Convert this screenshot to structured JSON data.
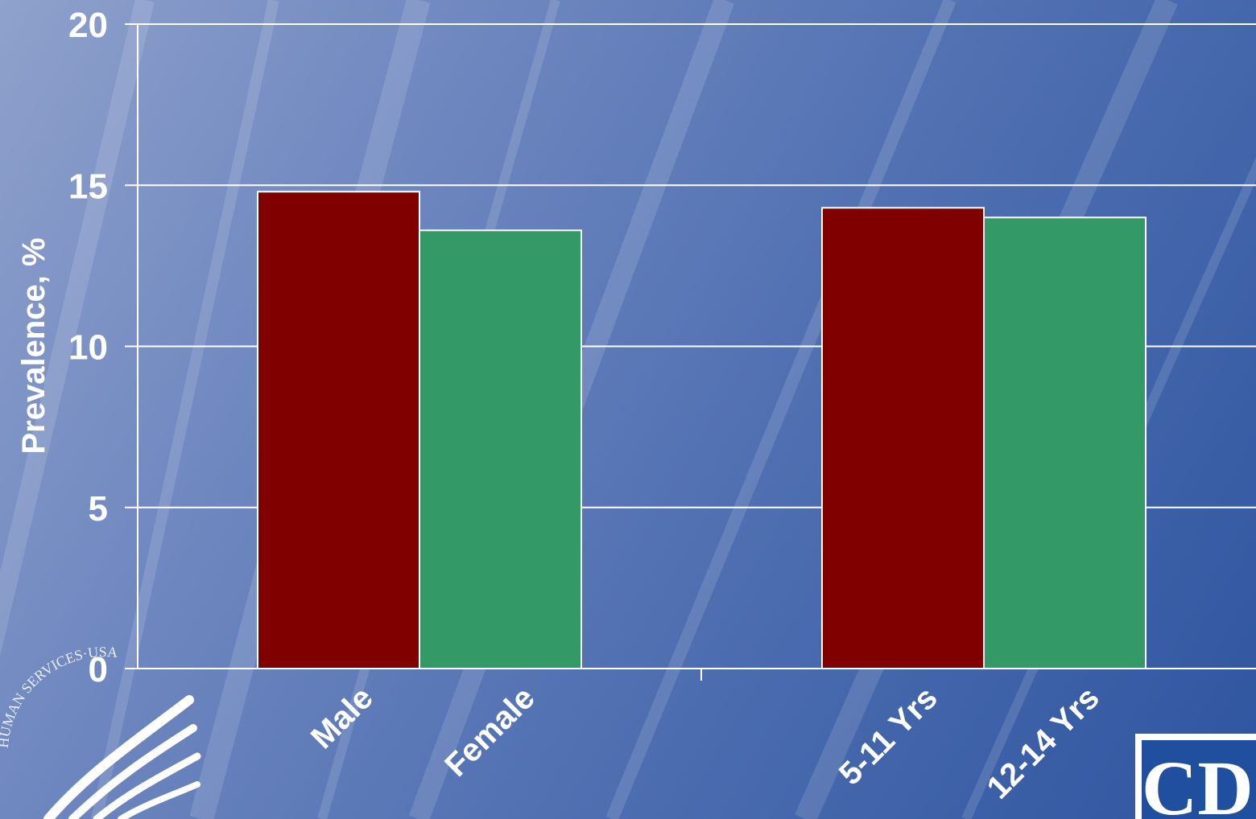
{
  "chart_data": {
    "type": "bar",
    "title": "",
    "xlabel": "",
    "ylabel": "Prevalence,  %",
    "ylim": [
      0,
      20
    ],
    "yticks": [
      0,
      5,
      10,
      15,
      20
    ],
    "grid": true,
    "groups": [
      {
        "categories": [
          "Male",
          "Female"
        ],
        "values": [
          14.8,
          13.6
        ]
      },
      {
        "categories": [
          "5-11 Yrs",
          "12-14 Yrs"
        ],
        "values": [
          14.3,
          14.0
        ]
      }
    ],
    "colors": {
      "first": "#800000",
      "second": "#339966",
      "grid": "#ffffff"
    }
  },
  "logos": {
    "left": "HUMAN SERVICES·USA",
    "right": "CDC"
  }
}
